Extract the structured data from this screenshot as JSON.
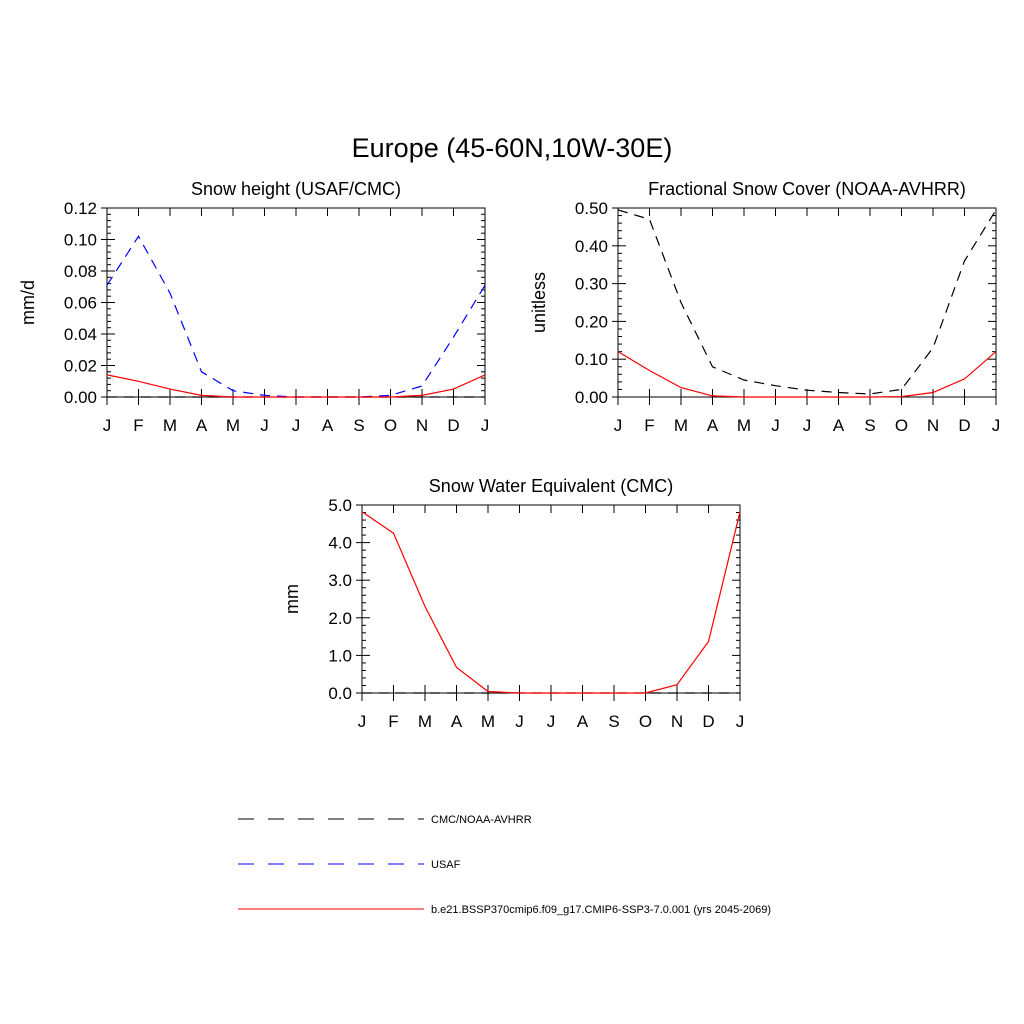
{
  "title": "Europe (45-60N,10W-30E)",
  "chart_data": [
    {
      "type": "line",
      "title": "Snow height (USAF/CMC)",
      "ylabel": "mm/d",
      "xlabel": "",
      "categories": [
        "J",
        "F",
        "M",
        "A",
        "M",
        "J",
        "J",
        "A",
        "S",
        "O",
        "N",
        "D",
        "J"
      ],
      "ylim": [
        0,
        0.12
      ],
      "yticks": [
        "0.00",
        "0.02",
        "0.04",
        "0.06",
        "0.08",
        "0.10",
        "0.12"
      ],
      "series": [
        {
          "name": "CMC/NOAA-AVHRR",
          "color": "#000000",
          "dash": true,
          "values": [
            0,
            0,
            0,
            0,
            0,
            0,
            0,
            0,
            0,
            0,
            0,
            0,
            0
          ]
        },
        {
          "name": "USAF",
          "color": "#0000ff",
          "dash": true,
          "values": [
            0.071,
            0.102,
            0.066,
            0.016,
            0.004,
            0.001,
            0.0,
            0.0,
            0.0,
            0.001,
            0.007,
            0.038,
            0.071
          ]
        },
        {
          "name": "b.e21.BSSP370cmip6.f09_g17.CMIP6-SSP3-7.0.001 (yrs 2045-2069)",
          "color": "#ff0000",
          "dash": false,
          "values": [
            0.014,
            0.01,
            0.005,
            0.001,
            0.0,
            0.0,
            0.0,
            0.0,
            0.0,
            0.0,
            0.001,
            0.005,
            0.014
          ]
        }
      ]
    },
    {
      "type": "line",
      "title": "Fractional Snow Cover (NOAA-AVHRR)",
      "ylabel": "unitless",
      "xlabel": "",
      "categories": [
        "J",
        "F",
        "M",
        "A",
        "M",
        "J",
        "J",
        "A",
        "S",
        "O",
        "N",
        "D",
        "J"
      ],
      "ylim": [
        0,
        0.5
      ],
      "yticks": [
        "0.00",
        "0.10",
        "0.20",
        "0.30",
        "0.40",
        "0.50"
      ],
      "series": [
        {
          "name": "CMC/NOAA-AVHRR",
          "color": "#000000",
          "dash": true,
          "values": [
            0.495,
            0.47,
            0.25,
            0.08,
            0.045,
            0.03,
            0.018,
            0.012,
            0.008,
            0.02,
            0.13,
            0.36,
            0.495
          ]
        },
        {
          "name": "b.e21.BSSP370cmip6.f09_g17.CMIP6-SSP3-7.0.001 (yrs 2045-2069)",
          "color": "#ff0000",
          "dash": false,
          "values": [
            0.12,
            0.07,
            0.025,
            0.003,
            0.0,
            0.0,
            0.0,
            0.0,
            0.0,
            0.001,
            0.012,
            0.048,
            0.12
          ]
        }
      ]
    },
    {
      "type": "line",
      "title": "Snow Water Equivalent (CMC)",
      "ylabel": "mm",
      "xlabel": "",
      "categories": [
        "J",
        "F",
        "M",
        "A",
        "M",
        "J",
        "J",
        "A",
        "S",
        "O",
        "N",
        "D",
        "J"
      ],
      "ylim": [
        0,
        5.0
      ],
      "yticks": [
        "0.0",
        "1.0",
        "2.0",
        "3.0",
        "4.0",
        "5.0"
      ],
      "series": [
        {
          "name": "CMC/NOAA-AVHRR",
          "color": "#000000",
          "dash": true,
          "values": [
            0,
            0,
            0,
            0,
            0,
            0,
            0,
            0,
            0,
            0,
            0,
            0,
            0
          ]
        },
        {
          "name": "b.e21.BSSP370cmip6.f09_g17.CMIP6-SSP3-7.0.001 (yrs 2045-2069)",
          "color": "#ff0000",
          "dash": false,
          "values": [
            4.82,
            4.25,
            2.3,
            0.68,
            0.04,
            0.0,
            0.0,
            0.0,
            0.0,
            0.0,
            0.22,
            1.37,
            4.82
          ]
        }
      ]
    }
  ],
  "legend": [
    {
      "label": "CMC/NOAA-AVHRR",
      "color": "#000000",
      "dash": true
    },
    {
      "label": "USAF",
      "color": "#0000ff",
      "dash": true
    },
    {
      "label": "b.e21.BSSP370cmip6.f09_g17.CMIP6-SSP3-7.0.001 (yrs 2045-2069)",
      "color": "#ff0000",
      "dash": false
    }
  ]
}
